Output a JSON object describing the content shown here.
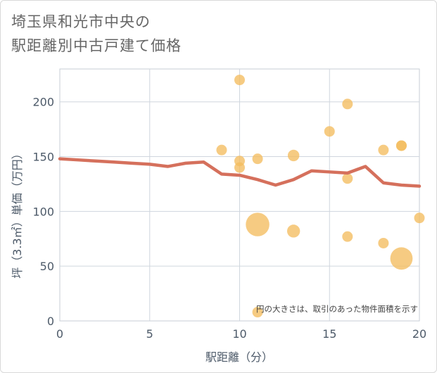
{
  "header": {
    "title_line1": "埼玉県和光市中央の",
    "title_line2": "駅距離別中古戸建て価格"
  },
  "chart_data": {
    "type": "scatter",
    "title": "埼玉県和光市中央の駅距離別中古戸建て価格",
    "xlabel": "駅距離（分）",
    "ylabel": "坪（3.3㎡）単価（万円）",
    "xlim": [
      0,
      20
    ],
    "ylim": [
      0,
      230
    ],
    "xticks": [
      0,
      5,
      10,
      15,
      20
    ],
    "yticks": [
      0,
      50,
      100,
      150,
      200
    ],
    "grid": true,
    "note": "円の大きさは、取引のあった物件面積を示す",
    "bubble_color": "#f3bd5f",
    "line_color": "#d5705c",
    "points": [
      {
        "x": 9,
        "y": 156,
        "size": 1
      },
      {
        "x": 10,
        "y": 220,
        "size": 1
      },
      {
        "x": 10,
        "y": 146,
        "size": 1
      },
      {
        "x": 10,
        "y": 140,
        "size": 1
      },
      {
        "x": 11,
        "y": 148,
        "size": 1
      },
      {
        "x": 11,
        "y": 88,
        "size": 5
      },
      {
        "x": 11,
        "y": 8,
        "size": 1
      },
      {
        "x": 13,
        "y": 151,
        "size": 1.2
      },
      {
        "x": 13,
        "y": 82,
        "size": 1.5
      },
      {
        "x": 15,
        "y": 173,
        "size": 1
      },
      {
        "x": 16,
        "y": 198,
        "size": 1
      },
      {
        "x": 16,
        "y": 130,
        "size": 1
      },
      {
        "x": 16,
        "y": 77,
        "size": 1
      },
      {
        "x": 18,
        "y": 156,
        "size": 1
      },
      {
        "x": 18,
        "y": 71,
        "size": 1
      },
      {
        "x": 19,
        "y": 160,
        "size": 1
      },
      {
        "x": 19,
        "y": 160,
        "size": 1
      },
      {
        "x": 19,
        "y": 57,
        "size": 4.5
      },
      {
        "x": 20,
        "y": 94,
        "size": 1
      }
    ],
    "trend_line": {
      "x": [
        0,
        1,
        2,
        3,
        4,
        5,
        6,
        7,
        8,
        9,
        10,
        11,
        12,
        13,
        14,
        15,
        16,
        17,
        18,
        19,
        20
      ],
      "y": [
        148,
        147,
        146,
        145,
        144,
        143,
        141,
        144,
        145,
        134,
        133,
        129,
        124,
        129,
        137,
        136,
        135,
        141,
        126,
        124,
        123
      ]
    }
  }
}
